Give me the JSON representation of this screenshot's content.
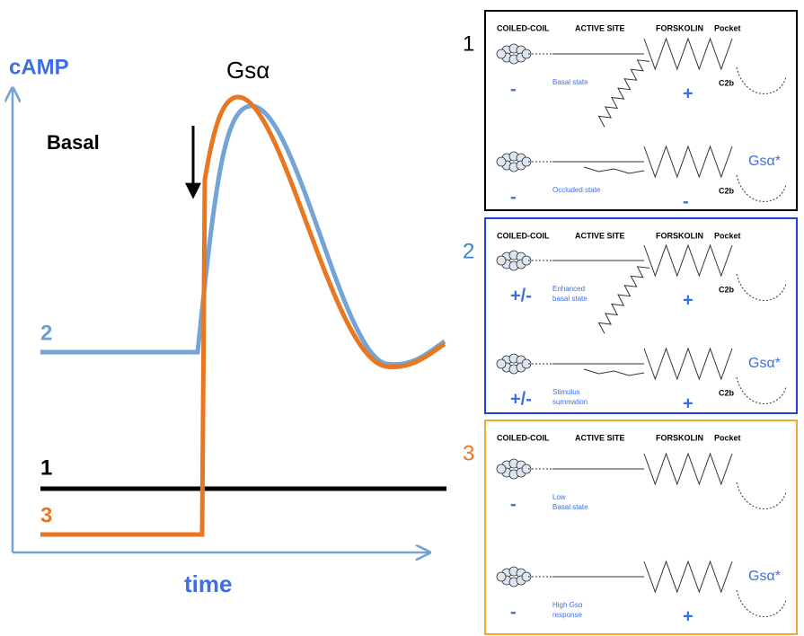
{
  "graph": {
    "y_label": "cAMP",
    "x_label": "time",
    "stimulus": "Gsα",
    "basal": "Basal",
    "curve_labels": [
      "2",
      "1",
      "3"
    ]
  },
  "panels": [
    {
      "number": "1",
      "headers": [
        "COILED-COIL",
        "ACTIVE SITE",
        "FORSKOLIN",
        "Pocket"
      ],
      "states": [
        {
          "sign": "-",
          "label": [
            "Basal state"
          ],
          "forskolin_sign": "+",
          "domain": "C2b"
        },
        {
          "sign": "-",
          "label": [
            "Occluded state"
          ],
          "forskolin_sign": "-",
          "domain": "C2b",
          "activator": "Gsα*"
        }
      ]
    },
    {
      "number": "2",
      "headers": [
        "COILED-COIL",
        "ACTIVE SITE",
        "FORSKOLIN",
        "Pocket"
      ],
      "states": [
        {
          "sign": "+/-",
          "label": [
            "Enhanced",
            "basal state"
          ],
          "forskolin_sign": "+",
          "domain": "C2b"
        },
        {
          "sign": "+/-",
          "label": [
            "Stimulus",
            "summation"
          ],
          "forskolin_sign": "+",
          "domain": "C2b",
          "activator": "Gsα*"
        }
      ]
    },
    {
      "number": "3",
      "headers": [
        "COILED-COIL",
        "ACTIVE SITE",
        "FORSKOLIN",
        "Pocket"
      ],
      "states": [
        {
          "sign": "-",
          "label": [
            "Low",
            "Basal state"
          ]
        },
        {
          "sign": "-",
          "label": [
            "High Gsα",
            "response"
          ],
          "forskolin_sign": "+",
          "activator": "Gsα*"
        }
      ]
    }
  ]
}
